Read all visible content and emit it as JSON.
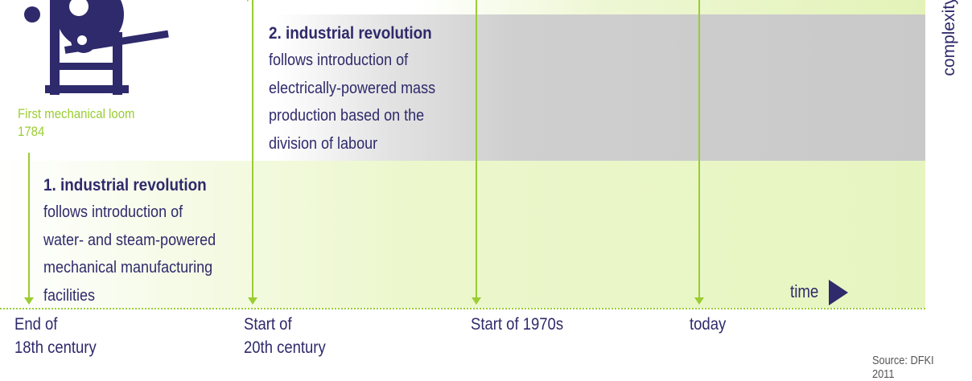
{
  "loom": {
    "caption_line1": "First mechanical loom",
    "caption_line2": "1784"
  },
  "revolutions": [
    {
      "title": "1. industrial revolution",
      "body": [
        "follows introduction of",
        "water- and steam-powered",
        "mechanical manufacturing",
        "facilities"
      ]
    },
    {
      "title": "2. industrial revolution",
      "body": [
        "follows introduction of",
        "electrically-powered mass",
        "production based on the",
        "division of labour"
      ]
    }
  ],
  "timeline": {
    "milestones": [
      {
        "line1": "End of",
        "line2": "18th century"
      },
      {
        "line1": "Start of",
        "line2": "20th century"
      },
      {
        "line1": "Start of 1970s",
        "line2": ""
      },
      {
        "line1": "today",
        "line2": ""
      }
    ],
    "x_axis_label": "time",
    "y_axis_label": "complexity"
  },
  "source": "Source: DFKI 2011",
  "colors": {
    "accent_green": "#9acd32",
    "navy": "#2e2a6b",
    "band_gray": "#c9c9c9",
    "band_green": "#e6f5c0"
  }
}
